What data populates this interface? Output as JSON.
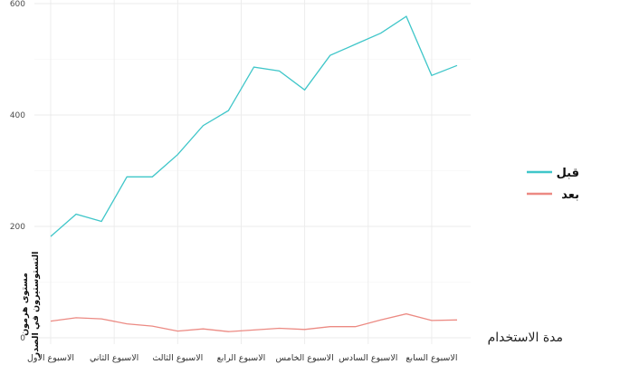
{
  "chart_data": {
    "type": "line",
    "title": "",
    "xlabel": "مدة الاستخدام",
    "ylabel": [
      "مستوى هرمون",
      "التستوستيرون في الصدر"
    ],
    "categories": [
      "الاسبوع الاول",
      "الاسبوع الثاني",
      "الاسبوع الثالث",
      "الاسبوع الرابع",
      "الاسبوع الخامس",
      "الاسبوع السادس",
      "الاسبوع السابع"
    ],
    "x": [
      1,
      1.4,
      1.8,
      2.2,
      2.6,
      3.0,
      3.4,
      3.8,
      4.2,
      4.6,
      5.0,
      5.4,
      5.8,
      6.2,
      6.6,
      7.0,
      7.4
    ],
    "xlim": [
      0.9,
      7.55
    ],
    "ylim": [
      0,
      600
    ],
    "yticks": [
      0,
      200,
      400,
      600
    ],
    "grid": true,
    "legend_position": "right",
    "series": [
      {
        "name": "قبل",
        "color": "#3fc6c9",
        "values": [
          182,
          222,
          209,
          289,
          289,
          329,
          381,
          408,
          486,
          479,
          445,
          507,
          527,
          547,
          577,
          471,
          489
        ]
      },
      {
        "name": "بعد",
        "color": "#ec8a83",
        "values": [
          30,
          36,
          34,
          25,
          21,
          12,
          16,
          11,
          14,
          17,
          15,
          20,
          20,
          32,
          43,
          31,
          32
        ]
      }
    ]
  }
}
